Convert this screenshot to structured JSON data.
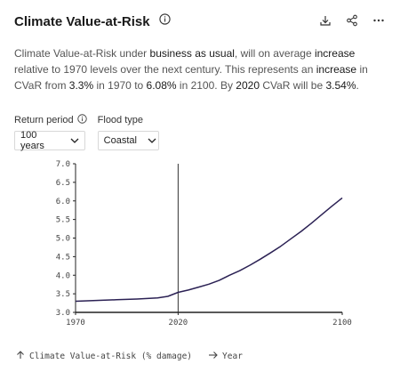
{
  "header": {
    "title": "Climate Value-at-Risk"
  },
  "description": {
    "t1": "Climate Value-at-Risk under ",
    "h1": "business as usual",
    "t2": ", will on average ",
    "h2": "increase",
    "t3": " relative to 1970 levels over the next century. This represents an ",
    "h3": "increase",
    "t4": " in CVaR from ",
    "h4": "3.3%",
    "t5": " in 1970 to ",
    "h5": "6.08%",
    "t6": " in 2100. By ",
    "h6": "2020",
    "t7": " CVaR will be ",
    "h7": "3.54%",
    "t8": "."
  },
  "controls": {
    "return_period": {
      "label": "Return period",
      "value": "100 years"
    },
    "flood_type": {
      "label": "Flood type",
      "value": "Coastal"
    }
  },
  "icons": {
    "info": "info-icon",
    "download": "download-icon",
    "share": "share-icon",
    "more": "more-icon",
    "chevron": "chevron-down-icon"
  },
  "colors": {
    "line": "#2b2154",
    "axis": "#222222",
    "marker": "#333333"
  },
  "footer": {
    "y_legend": "Climate Value-at-Risk (% damage)",
    "x_legend": "Year"
  },
  "chart_data": {
    "type": "line",
    "x": [
      1970,
      1980,
      1990,
      2000,
      2010,
      2015,
      2020,
      2025,
      2030,
      2035,
      2040,
      2045,
      2050,
      2055,
      2060,
      2065,
      2070,
      2075,
      2080,
      2085,
      2090,
      2095,
      2100
    ],
    "series": [
      {
        "values": [
          3.3,
          3.32,
          3.34,
          3.36,
          3.39,
          3.43,
          3.54,
          3.6,
          3.68,
          3.76,
          3.86,
          4.0,
          4.12,
          4.27,
          4.43,
          4.6,
          4.78,
          4.98,
          5.18,
          5.4,
          5.63,
          5.86,
          6.08
        ]
      }
    ],
    "xlabel": "Year",
    "ylabel": "Climate Value-at-Risk (% damage)",
    "xlim": [
      1970,
      2100
    ],
    "ylim": [
      3.0,
      7.0
    ],
    "yticks": [
      "7.0",
      "6.5",
      "6.0",
      "5.5",
      "5.0",
      "4.5",
      "4.0",
      "3.5",
      "3.0"
    ],
    "ytick_values": [
      7.0,
      6.5,
      6.0,
      5.5,
      5.0,
      4.5,
      4.0,
      3.5,
      3.0
    ],
    "xticks": [
      "1970",
      "2020",
      "2100"
    ],
    "xtick_values": [
      1970,
      2020,
      2100
    ],
    "marker_x": 2020,
    "grid": false
  }
}
